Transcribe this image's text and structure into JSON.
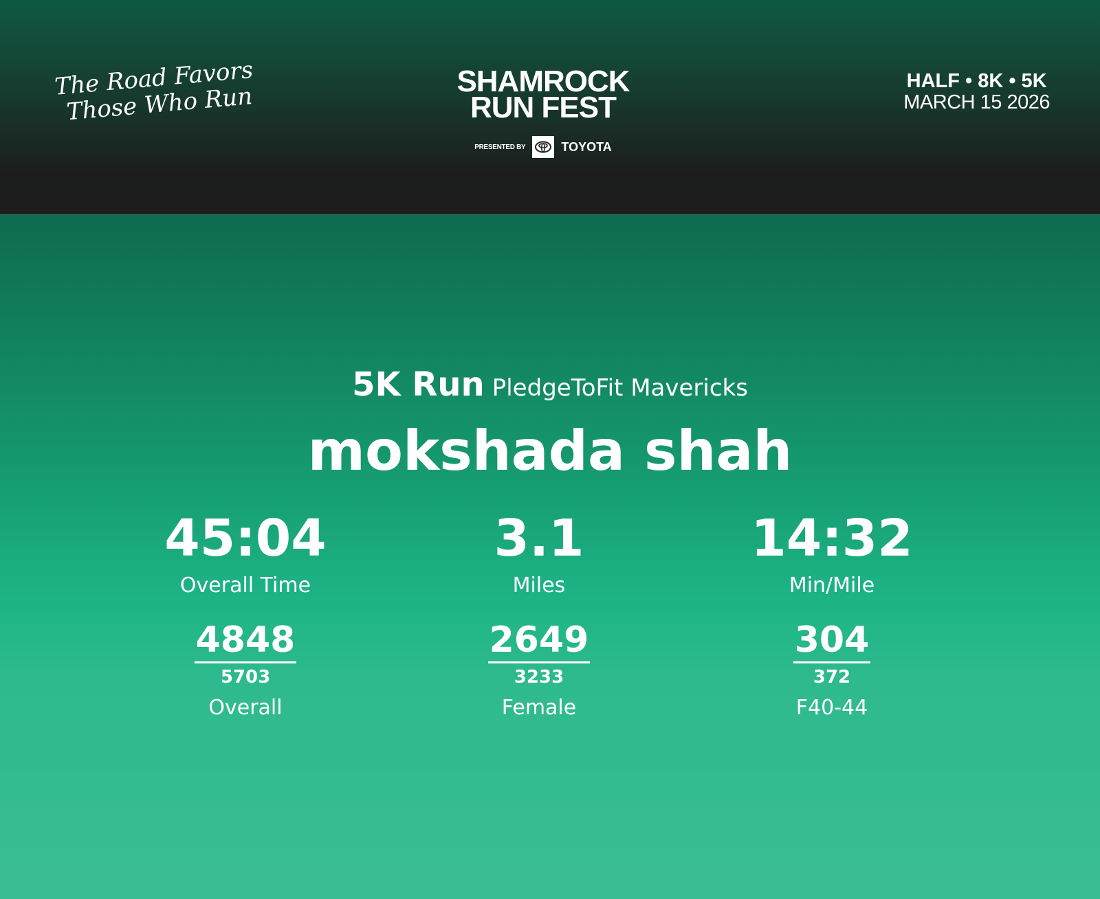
{
  "header": {
    "tagline": [
      "The Road Favors",
      "Those Who Run"
    ],
    "logo": {
      "line1": "SHAMROCK",
      "line2": "RUN FEST",
      "presented_by": "PRESENTED BY",
      "sponsor": "TOYOTA"
    },
    "event_types": "HALF • 8K • 5K",
    "event_date": "MARCH 15 2026"
  },
  "result": {
    "race": "5K Run",
    "team": "PledgeToFit Mavericks",
    "runner_name": "mokshada shah",
    "stats": [
      {
        "value": "45:04",
        "label": "Overall Time"
      },
      {
        "value": "3.1",
        "label": "Miles"
      },
      {
        "value": "14:32",
        "label": "Min/Mile"
      }
    ],
    "ranks": [
      {
        "place": "4848",
        "total": "5703",
        "category": "Overall"
      },
      {
        "place": "2649",
        "total": "3233",
        "category": "Female"
      },
      {
        "place": "304",
        "total": "372",
        "category": "F40-44"
      }
    ]
  },
  "colors": {
    "header_dark": "#1d1d1d",
    "header_green": "#0f5a43",
    "body_green": "#1db586"
  }
}
